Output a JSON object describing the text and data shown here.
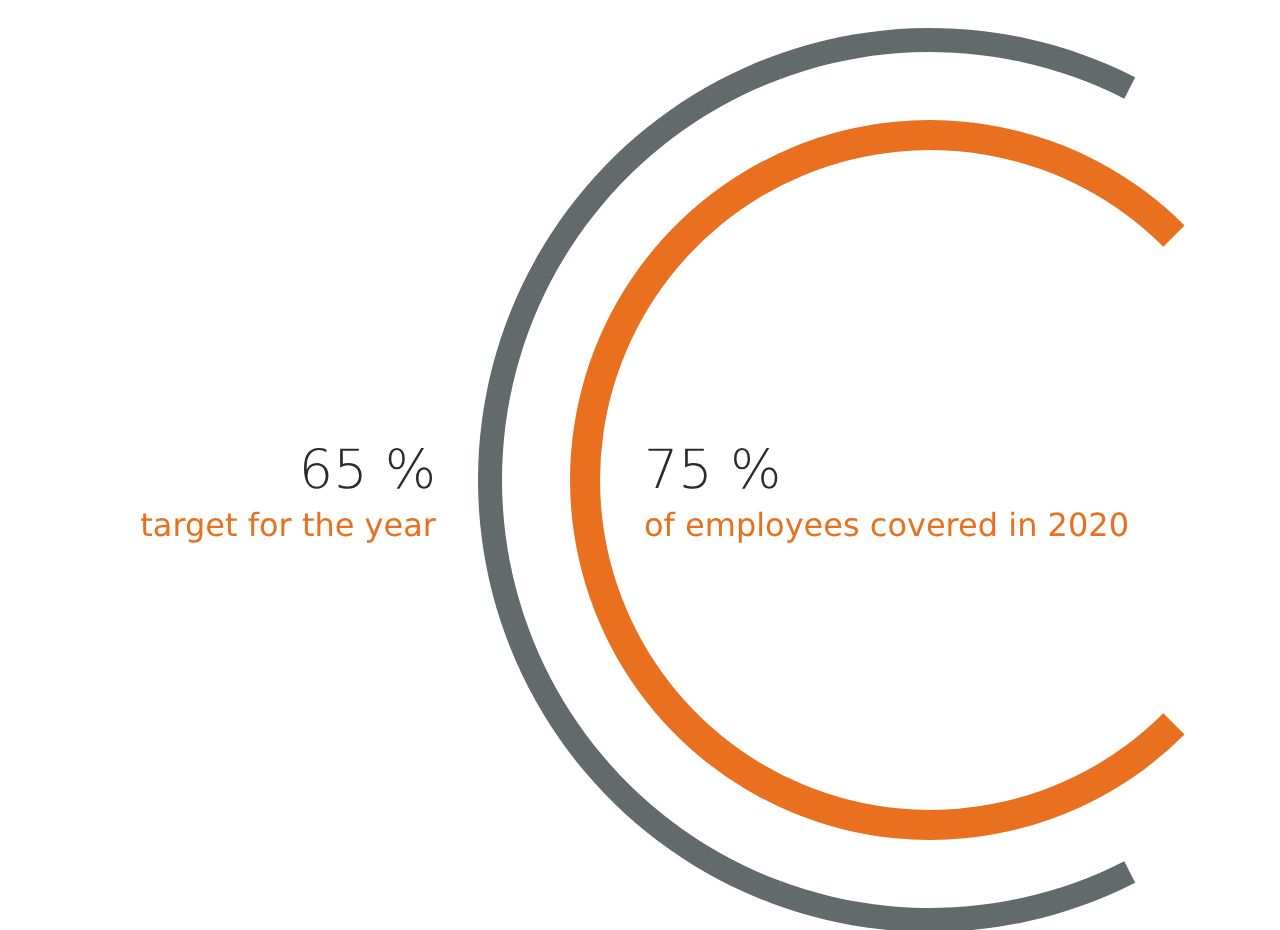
{
  "chart_data": {
    "type": "other",
    "categories": [
      "target for the year",
      "of employees covered in 2020"
    ],
    "values": [
      65,
      75
    ],
    "value_labels": [
      "65 %",
      "75 %"
    ],
    "colors": [
      "#636a6c",
      "#e8701e"
    ]
  }
}
